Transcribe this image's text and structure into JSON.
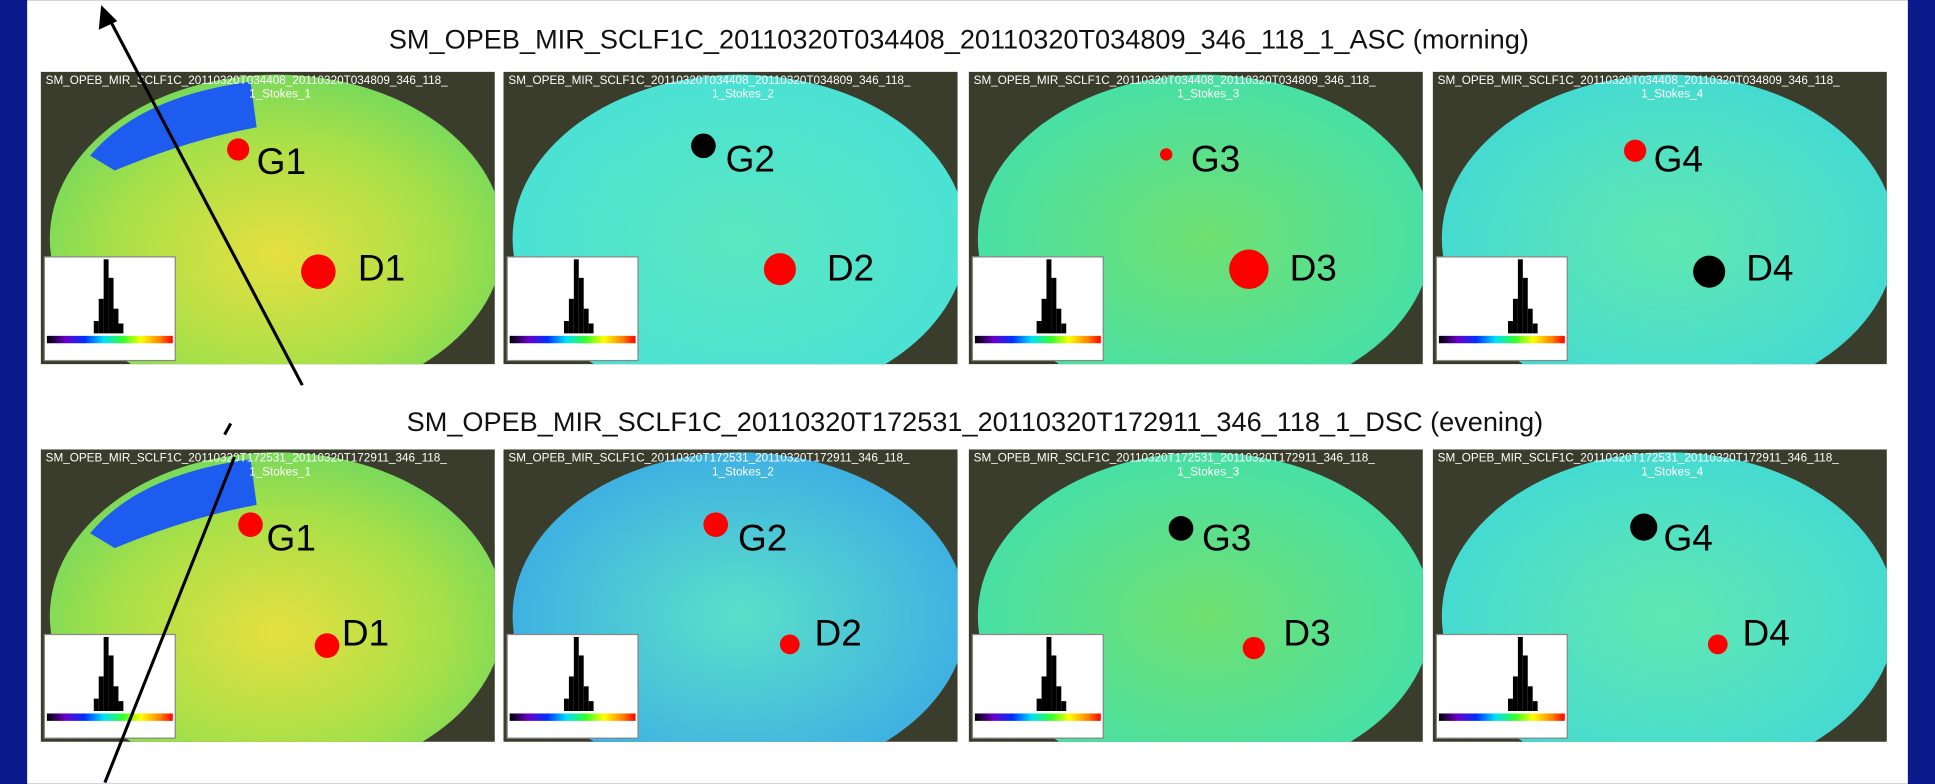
{
  "rows": [
    {
      "title": "SM_OPEB_MIR_SCLF1C_20110320T034408_20110320T034809_346_118_1_ASC (morning)",
      "panels": [
        {
          "header": "SM_OPEB_MIR_SCLF1C_20110320T034408_20110320T034809_346_118_",
          "subheader": "1_Stokes_1",
          "labels": [
            "G1",
            "D1"
          ]
        },
        {
          "header": "SM_OPEB_MIR_SCLF1C_20110320T034408_20110320T034809_346_118_",
          "subheader": "1_Stokes_2",
          "labels": [
            "G2",
            "D2"
          ]
        },
        {
          "header": "SM_OPEB_MIR_SCLF1C_20110320T034408_20110320T034809_346_118_",
          "subheader": "1_Stokes_3",
          "labels": [
            "G3",
            "D3"
          ]
        },
        {
          "header": "SM_OPEB_MIR_SCLF1C_20110320T034408_20110320T034809_346_118_",
          "subheader": "1_Stokes_4",
          "labels": [
            "G4",
            "D4"
          ]
        }
      ]
    },
    {
      "title": "SM_OPEB_MIR_SCLF1C_20110320T172531_20110320T172911_346_118_1_DSC (evening)",
      "panels": [
        {
          "header": "SM_OPEB_MIR_SCLF1C_20110320T172531_20110320T172911_346_118_",
          "subheader": "1_Stokes_1",
          "labels": [
            "G1",
            "D1"
          ]
        },
        {
          "header": "SM_OPEB_MIR_SCLF1C_20110320T172531_20110320T172911_346_118_",
          "subheader": "1_Stokes_2",
          "labels": [
            "G2",
            "D2"
          ]
        },
        {
          "header": "SM_OPEB_MIR_SCLF1C_20110320T172531_20110320T172911_346_118_",
          "subheader": "1_Stokes_3",
          "labels": [
            "G3",
            "D3"
          ]
        },
        {
          "header": "SM_OPEB_MIR_SCLF1C_20110320T172531_20110320T172911_346_118_",
          "subheader": "1_Stokes_4",
          "labels": [
            "G4",
            "D4"
          ]
        }
      ]
    }
  ]
}
